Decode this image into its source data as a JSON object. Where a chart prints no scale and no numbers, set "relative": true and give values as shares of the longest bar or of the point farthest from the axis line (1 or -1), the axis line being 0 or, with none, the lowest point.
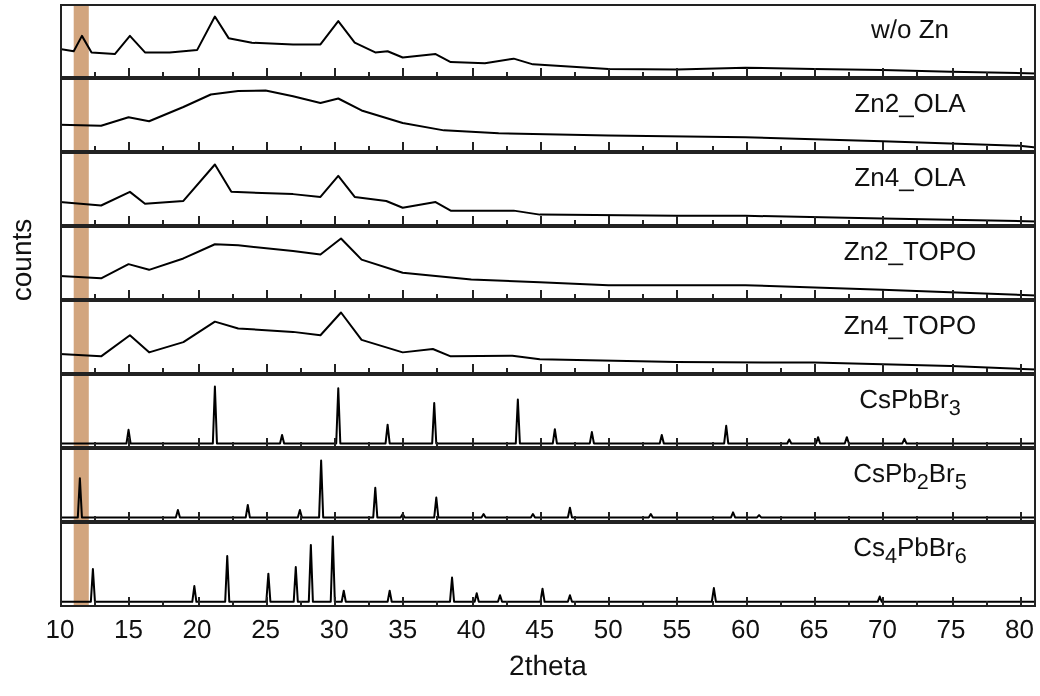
{
  "chart_data": [
    {
      "type": "line",
      "relative": true,
      "tick_labels": false,
      "marker": "none",
      "xlim": [
        10,
        81.2
      ],
      "xticks": [
        10,
        {
          "value": 12.5,
          "label": null
        },
        15,
        {
          "value": 17.5,
          "label": null
        },
        20,
        {
          "value": 22.5,
          "label": null
        },
        25,
        {
          "value": 27.5,
          "label": null
        },
        30,
        {
          "value": 32.5,
          "label": null
        },
        35,
        {
          "value": 37.5,
          "label": null
        },
        40,
        {
          "value": 42.5,
          "label": null
        },
        45,
        {
          "value": 47.5,
          "label": null
        },
        50,
        {
          "value": 52.5,
          "label": null
        },
        55,
        {
          "value": 57.5,
          "label": null
        },
        60,
        {
          "value": 62.5,
          "label": null
        },
        65,
        {
          "value": 67.5,
          "label": null
        },
        70,
        {
          "value": 72.5,
          "label": null
        },
        75,
        {
          "value": 77.5,
          "label": null
        },
        80
      ],
      "bands": [
        {
          "axis": "x",
          "from": 11,
          "to": 12.1,
          "color": "#d2a57e"
        }
      ],
      "x": [
        10,
        11,
        11.6,
        12.3,
        14,
        15.1,
        16.2,
        18,
        20,
        21.3,
        22.3,
        24,
        27,
        29,
        30.3,
        31.5,
        33,
        33.9,
        35,
        37.4,
        38.5,
        41,
        43.1,
        44.5,
        50,
        55,
        60,
        65,
        70,
        75,
        81.2
      ],
      "series": [
        {
          "name": "w/o Zn",
          "color": "#000000",
          "values": [
            0.43,
            0.39,
            0.66,
            0.37,
            0.34,
            0.66,
            0.37,
            0.37,
            0.41,
            1,
            0.62,
            0.54,
            0.51,
            0.51,
            0.92,
            0.54,
            0.37,
            0.39,
            0.28,
            0.34,
            0.2,
            0.18,
            0.26,
            0.16,
            0.08,
            0.07,
            0.1,
            0.08,
            0.06,
            0.03,
            0
          ]
        }
      ]
    },
    {
      "type": "line",
      "relative": true,
      "tick_labels": false,
      "marker": "none",
      "xlim": [
        10,
        81.2
      ],
      "xticks": [
        10,
        {
          "value": 12.5,
          "label": null
        },
        15,
        {
          "value": 17.5,
          "label": null
        },
        20,
        {
          "value": 22.5,
          "label": null
        },
        25,
        {
          "value": 27.5,
          "label": null
        },
        30,
        {
          "value": 32.5,
          "label": null
        },
        35,
        {
          "value": 37.5,
          "label": null
        },
        40,
        {
          "value": 42.5,
          "label": null
        },
        45,
        {
          "value": 47.5,
          "label": null
        },
        50,
        {
          "value": 52.5,
          "label": null
        },
        55,
        {
          "value": 57.5,
          "label": null
        },
        60,
        {
          "value": 62.5,
          "label": null
        },
        65,
        {
          "value": 67.5,
          "label": null
        },
        70,
        {
          "value": 72.5,
          "label": null
        },
        75,
        {
          "value": 77.5,
          "label": null
        },
        80
      ],
      "bands": [
        {
          "axis": "x",
          "from": 11,
          "to": 12.1,
          "color": "#d2a57e"
        }
      ],
      "x": [
        10,
        13,
        15,
        16.5,
        19,
        21,
        23,
        25,
        27,
        29,
        30.3,
        32,
        35,
        38,
        42,
        50,
        60,
        70,
        80,
        81.2
      ],
      "series": [
        {
          "name": "Zn2_OLA",
          "color": "#000000",
          "values": [
            0.4,
            0.38,
            0.53,
            0.46,
            0.71,
            0.93,
            0.99,
            1,
            0.9,
            0.78,
            0.86,
            0.65,
            0.43,
            0.3,
            0.25,
            0.21,
            0.18,
            0.11,
            0.03,
            0
          ]
        }
      ]
    },
    {
      "type": "line",
      "relative": true,
      "tick_labels": false,
      "marker": "none",
      "xlim": [
        10,
        81.2
      ],
      "xticks": [
        10,
        {
          "value": 12.5,
          "label": null
        },
        15,
        {
          "value": 17.5,
          "label": null
        },
        20,
        {
          "value": 22.5,
          "label": null
        },
        25,
        {
          "value": 27.5,
          "label": null
        },
        30,
        {
          "value": 32.5,
          "label": null
        },
        35,
        {
          "value": 37.5,
          "label": null
        },
        40,
        {
          "value": 42.5,
          "label": null
        },
        45,
        {
          "value": 47.5,
          "label": null
        },
        50,
        {
          "value": 52.5,
          "label": null
        },
        55,
        {
          "value": 57.5,
          "label": null
        },
        60,
        {
          "value": 62.5,
          "label": null
        },
        65,
        {
          "value": 67.5,
          "label": null
        },
        70,
        {
          "value": 72.5,
          "label": null
        },
        75,
        {
          "value": 77.5,
          "label": null
        },
        80
      ],
      "bands": [
        {
          "axis": "x",
          "from": 11,
          "to": 12.1,
          "color": "#d2a57e"
        }
      ],
      "x": [
        10,
        13,
        15.1,
        16.2,
        19,
        21.3,
        22.5,
        27,
        29,
        30.3,
        31.5,
        33.8,
        35,
        37.4,
        38.5,
        43.1,
        45,
        55,
        60,
        70,
        81.2
      ],
      "series": [
        {
          "name": "Zn4_OLA",
          "color": "#000000",
          "values": [
            0.34,
            0.28,
            0.52,
            0.31,
            0.36,
            1,
            0.52,
            0.48,
            0.43,
            0.8,
            0.43,
            0.36,
            0.24,
            0.34,
            0.19,
            0.19,
            0.12,
            0.1,
            0.1,
            0.05,
            0
          ]
        }
      ]
    },
    {
      "type": "line",
      "relative": true,
      "tick_labels": false,
      "marker": "none",
      "ylabel": "counts",
      "xlim": [
        10,
        81.2
      ],
      "xticks": [
        10,
        {
          "value": 12.5,
          "label": null
        },
        15,
        {
          "value": 17.5,
          "label": null
        },
        20,
        {
          "value": 22.5,
          "label": null
        },
        25,
        {
          "value": 27.5,
          "label": null
        },
        30,
        {
          "value": 32.5,
          "label": null
        },
        35,
        {
          "value": 37.5,
          "label": null
        },
        40,
        {
          "value": 42.5,
          "label": null
        },
        45,
        {
          "value": 47.5,
          "label": null
        },
        50,
        {
          "value": 52.5,
          "label": null
        },
        55,
        {
          "value": 57.5,
          "label": null
        },
        60,
        {
          "value": 62.5,
          "label": null
        },
        65,
        {
          "value": 67.5,
          "label": null
        },
        70,
        {
          "value": 72.5,
          "label": null
        },
        75,
        {
          "value": 77.5,
          "label": null
        },
        80
      ],
      "bands": [
        {
          "axis": "x",
          "from": 11,
          "to": 12.1,
          "color": "#d2a57e"
        }
      ],
      "x": [
        10,
        13,
        15,
        16.5,
        19,
        21.3,
        23,
        27,
        29,
        30.5,
        32,
        35,
        40,
        45,
        50,
        60,
        70,
        81.2
      ],
      "series": [
        {
          "name": "Zn2_TOPO",
          "color": "#000000",
          "values": [
            0.34,
            0.3,
            0.55,
            0.45,
            0.65,
            0.9,
            0.88,
            0.78,
            0.72,
            1,
            0.63,
            0.4,
            0.28,
            0.23,
            0.18,
            0.18,
            0.1,
            0
          ]
        }
      ]
    },
    {
      "type": "line",
      "relative": true,
      "tick_labels": false,
      "marker": "none",
      "xlim": [
        10,
        81.2
      ],
      "xticks": [
        10,
        {
          "value": 12.5,
          "label": null
        },
        15,
        {
          "value": 17.5,
          "label": null
        },
        20,
        {
          "value": 22.5,
          "label": null
        },
        25,
        {
          "value": 27.5,
          "label": null
        },
        30,
        {
          "value": 32.5,
          "label": null
        },
        35,
        {
          "value": 37.5,
          "label": null
        },
        40,
        {
          "value": 42.5,
          "label": null
        },
        45,
        {
          "value": 47.5,
          "label": null
        },
        50,
        {
          "value": 52.5,
          "label": null
        },
        55,
        {
          "value": 57.5,
          "label": null
        },
        60,
        {
          "value": 62.5,
          "label": null
        },
        65,
        {
          "value": 67.5,
          "label": null
        },
        70,
        {
          "value": 72.5,
          "label": null
        },
        75,
        {
          "value": 77.5,
          "label": null
        },
        80
      ],
      "bands": [
        {
          "axis": "x",
          "from": 11,
          "to": 12.1,
          "color": "#d2a57e"
        }
      ],
      "x": [
        10,
        13,
        15.1,
        16.5,
        19,
        21.3,
        23,
        27,
        29,
        30.5,
        32,
        35,
        37.2,
        38.5,
        43,
        45,
        55,
        65,
        75,
        81.2
      ],
      "series": [
        {
          "name": "Zn4_TOPO",
          "color": "#000000",
          "values": [
            0.27,
            0.23,
            0.6,
            0.3,
            0.48,
            0.84,
            0.72,
            0.66,
            0.6,
            1,
            0.52,
            0.3,
            0.36,
            0.23,
            0.24,
            0.18,
            0.13,
            0.12,
            0.06,
            0
          ]
        }
      ]
    },
    {
      "type": "line",
      "relative": true,
      "tick_labels": false,
      "marker": "none",
      "xlim": [
        10,
        81.2
      ],
      "xticks": [
        10,
        {
          "value": 12.5,
          "label": null
        },
        15,
        {
          "value": 17.5,
          "label": null
        },
        20,
        {
          "value": 22.5,
          "label": null
        },
        25,
        {
          "value": 27.5,
          "label": null
        },
        30,
        {
          "value": 32.5,
          "label": null
        },
        35,
        {
          "value": 37.5,
          "label": null
        },
        40,
        {
          "value": 42.5,
          "label": null
        },
        45,
        {
          "value": 47.5,
          "label": null
        },
        50,
        {
          "value": 52.5,
          "label": null
        },
        55,
        {
          "value": 57.5,
          "label": null
        },
        60,
        {
          "value": 62.5,
          "label": null
        },
        65,
        {
          "value": 67.5,
          "label": null
        },
        70,
        {
          "value": 72.5,
          "label": null
        },
        75,
        {
          "value": 77.5,
          "label": null
        },
        80
      ],
      "bands": [
        {
          "axis": "x",
          "from": 11,
          "to": 12.1,
          "color": "#d2a57e"
        }
      ],
      "x": [
        10,
        14.85,
        15,
        15.15,
        21.15,
        21.3,
        21.45,
        26.05,
        26.2,
        26.35,
        30.15,
        30.3,
        30.45,
        33.75,
        33.9,
        34.05,
        37.15,
        37.3,
        37.45,
        43.25,
        43.4,
        43.55,
        45.95,
        46.1,
        46.25,
        48.65,
        48.8,
        48.95,
        53.75,
        53.9,
        54.05,
        58.45,
        58.6,
        58.75,
        63.05,
        63.2,
        63.35,
        65.15,
        65.3,
        65.45,
        67.25,
        67.4,
        67.55,
        71.45,
        71.6,
        71.75,
        81.2
      ],
      "series": [
        {
          "name": "CsPbBr$_{3}$",
          "color": "#000000",
          "values": [
            0,
            0,
            0.24,
            0,
            0,
            1,
            0,
            0,
            0.15,
            0,
            0,
            0.97,
            0,
            0,
            0.33,
            0,
            0,
            0.71,
            0,
            0,
            0.77,
            0,
            0,
            0.25,
            0,
            0,
            0.2,
            0,
            0,
            0.15,
            0,
            0,
            0.31,
            0,
            0,
            0.07,
            0,
            0,
            0.11,
            0,
            0,
            0.11,
            0,
            0,
            0.08,
            0,
            0
          ]
        }
      ]
    },
    {
      "type": "line",
      "relative": true,
      "tick_labels": false,
      "marker": "none",
      "xlim": [
        10,
        81.2
      ],
      "xticks": [
        10,
        {
          "value": 12.5,
          "label": null
        },
        15,
        {
          "value": 17.5,
          "label": null
        },
        20,
        {
          "value": 22.5,
          "label": null
        },
        25,
        {
          "value": 27.5,
          "label": null
        },
        30,
        {
          "value": 32.5,
          "label": null
        },
        35,
        {
          "value": 37.5,
          "label": null
        },
        40,
        {
          "value": 42.5,
          "label": null
        },
        45,
        {
          "value": 47.5,
          "label": null
        },
        50,
        {
          "value": 52.5,
          "label": null
        },
        55,
        {
          "value": 57.5,
          "label": null
        },
        60,
        {
          "value": 62.5,
          "label": null
        },
        65,
        {
          "value": 67.5,
          "label": null
        },
        70,
        {
          "value": 72.5,
          "label": null
        },
        75,
        {
          "value": 77.5,
          "label": null
        },
        80
      ],
      "bands": [
        {
          "axis": "x",
          "from": 11,
          "to": 12.1,
          "color": "#d2a57e"
        }
      ],
      "x": [
        10,
        11.3,
        11.45,
        11.6,
        18.45,
        18.6,
        18.75,
        23.55,
        23.7,
        23.85,
        27.35,
        27.5,
        27.65,
        28.9,
        29.05,
        29.2,
        32.85,
        33,
        33.15,
        34.85,
        35,
        35.15,
        37.3,
        37.45,
        37.6,
        40.75,
        40.9,
        41.05,
        44.35,
        44.5,
        44.65,
        47.05,
        47.2,
        47.35,
        52.95,
        53.1,
        53.25,
        58.95,
        59.1,
        59.25,
        60.85,
        61,
        61.15,
        81.2
      ],
      "series": [
        {
          "name": "CsPb$_{2}$Br$_{5}$",
          "color": "#000000",
          "values": [
            0,
            0,
            0.69,
            0,
            0,
            0.13,
            0,
            0,
            0.22,
            0,
            0,
            0.13,
            0,
            0,
            1,
            0,
            0,
            0.52,
            0,
            0,
            0.06,
            0,
            0,
            0.35,
            0,
            0,
            0.06,
            0,
            0,
            0.06,
            0,
            0,
            0.17,
            0,
            0,
            0.06,
            0,
            0,
            0.09,
            0,
            0,
            0.04,
            0,
            0
          ]
        }
      ]
    },
    {
      "type": "line",
      "relative": true,
      "tick_labels": "x",
      "marker": "none",
      "xlabel": "2theta",
      "xlim": [
        10,
        81.2
      ],
      "xticks": [
        10,
        {
          "value": 12.5,
          "label": null
        },
        15,
        {
          "value": 17.5,
          "label": null
        },
        20,
        {
          "value": 22.5,
          "label": null
        },
        25,
        {
          "value": 27.5,
          "label": null
        },
        30,
        {
          "value": 32.5,
          "label": null
        },
        35,
        {
          "value": 37.5,
          "label": null
        },
        40,
        {
          "value": 42.5,
          "label": null
        },
        45,
        {
          "value": 47.5,
          "label": null
        },
        50,
        {
          "value": 52.5,
          "label": null
        },
        55,
        {
          "value": 57.5,
          "label": null
        },
        60,
        {
          "value": 62.5,
          "label": null
        },
        65,
        {
          "value": 67.5,
          "label": null
        },
        70,
        {
          "value": 72.5,
          "label": null
        },
        75,
        {
          "value": 77.5,
          "label": null
        },
        80
      ],
      "bands": [
        {
          "axis": "x",
          "from": 11,
          "to": 12.1,
          "color": "#d2a57e"
        }
      ],
      "x": [
        10,
        12.25,
        12.4,
        12.55,
        19.65,
        19.8,
        19.95,
        22.05,
        22.2,
        22.35,
        25.05,
        25.2,
        25.35,
        27.05,
        27.2,
        27.35,
        28.15,
        28.3,
        28.45,
        29.75,
        29.9,
        30.05,
        30.55,
        30.7,
        30.85,
        33.9,
        34.05,
        34.2,
        38.45,
        38.6,
        38.75,
        40.25,
        40.4,
        40.55,
        41.95,
        42.1,
        42.25,
        45.05,
        45.2,
        45.35,
        47.05,
        47.2,
        47.35,
        57.55,
        57.7,
        57.85,
        69.65,
        69.8,
        69.95,
        81.2
      ],
      "series": [
        {
          "name": "Cs$_{4}$PbBr$_{6}$",
          "color": "#000000",
          "values": [
            0,
            0,
            0.5,
            0,
            0,
            0.24,
            0,
            0,
            0.7,
            0,
            0,
            0.43,
            0,
            0,
            0.53,
            0,
            0,
            0.87,
            0,
            0,
            1,
            0,
            0,
            0.17,
            0,
            0,
            0.17,
            0,
            0,
            0.37,
            0,
            0,
            0.13,
            0,
            0,
            0.1,
            0,
            0,
            0.2,
            0,
            0,
            0.1,
            0,
            0,
            0.21,
            0,
            0,
            0.08,
            0,
            0
          ]
        }
      ]
    }
  ]
}
